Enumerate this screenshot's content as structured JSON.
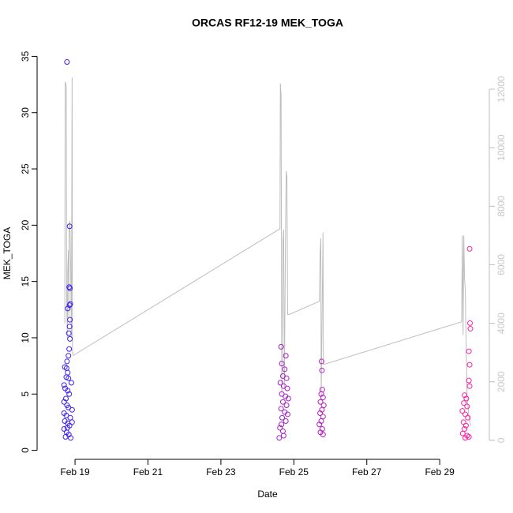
{
  "chart_data": {
    "type": "scatter",
    "title": "ORCAS RF12-19 MEK_TOGA",
    "x_label": "Date",
    "y_label": "MEK_TOGA",
    "xlim": [
      17.96,
      30.36
    ],
    "ylim": [
      -0.8,
      35.8
    ],
    "y2lim": [
      -650,
      13430
    ],
    "xticks": [
      {
        "value": 19,
        "label": "Feb 19"
      },
      {
        "value": 21,
        "label": "Feb 21"
      },
      {
        "value": 23,
        "label": "Feb 23"
      },
      {
        "value": 25,
        "label": "Feb 25"
      },
      {
        "value": 27,
        "label": "Feb 27"
      },
      {
        "value": 29,
        "label": "Feb 29"
      }
    ],
    "yticks": [
      0,
      5,
      10,
      15,
      20,
      25,
      30,
      35
    ],
    "y2ticks": [
      0,
      2000,
      4000,
      6000,
      8000,
      10000,
      12000
    ],
    "y2_color": "#c8c8c8",
    "series": [
      {
        "type": "line",
        "axis": "y2",
        "color": "#bdbdbd",
        "x": [
          18.72,
          18.73,
          18.76,
          18.77,
          18.79,
          18.8,
          18.82,
          18.83,
          18.84,
          18.86,
          18.88,
          18.9,
          18.92,
          18.93,
          18.95,
          24.62,
          24.63,
          24.65,
          24.67,
          24.7,
          24.72,
          24.74,
          24.77,
          24.79,
          24.81,
          24.83,
          24.87,
          25.7,
          25.72,
          25.74,
          25.75,
          25.8,
          25.81,
          25.84,
          29.6,
          29.62,
          29.64,
          29.66,
          29.68,
          29.7,
          29.72,
          29.75,
          29.8,
          29.85
        ],
        "values": [
          4000,
          12250,
          12100,
          5000,
          3500,
          5800,
          6500,
          4200,
          7200,
          7500,
          6000,
          3500,
          12400,
          3000,
          2900,
          7230,
          12200,
          11800,
          1600,
          6800,
          7200,
          1800,
          6800,
          9200,
          9000,
          4300,
          4300,
          4750,
          6400,
          6900,
          1500,
          7100,
          2600,
          2600,
          4050,
          7000,
          3600,
          7000,
          5500,
          5200,
          3600,
          1500,
          800,
          500
        ]
      },
      {
        "type": "scatter",
        "color_gradient": [
          "#3b22f0",
          "#ff1ea0"
        ],
        "x": [
          18.78,
          18.85,
          18.84,
          18.86,
          18.87,
          18.85,
          18.8,
          18.86,
          18.85,
          18.83,
          18.86,
          18.84,
          18.82,
          18.78,
          18.72,
          18.77,
          18.8,
          18.76,
          18.82,
          18.9,
          18.7,
          18.73,
          18.8,
          18.84,
          18.75,
          18.7,
          18.78,
          18.82,
          18.92,
          18.7,
          18.76,
          18.87,
          18.72,
          18.8,
          18.85,
          18.92,
          18.7,
          18.77,
          18.83,
          18.74,
          18.88,
          18.79,
          24.65,
          24.78,
          24.67,
          24.75,
          24.7,
          24.8,
          24.63,
          24.72,
          24.82,
          24.67,
          24.77,
          24.85,
          24.7,
          24.8,
          24.65,
          24.75,
          24.83,
          24.68,
          24.78,
          24.62,
          24.7,
          24.6,
          24.72,
          24.66,
          25.76,
          25.77,
          25.78,
          25.75,
          25.8,
          25.73,
          25.82,
          25.77,
          25.72,
          25.8,
          25.75,
          25.7,
          25.78,
          25.73,
          25.8,
          29.82,
          29.83,
          29.84,
          29.8,
          29.82,
          29.8,
          29.82,
          29.68,
          29.73,
          29.66,
          29.75,
          29.62,
          29.7,
          29.77,
          29.65,
          29.72,
          29.68,
          29.63,
          29.75,
          29.8,
          29.7
        ],
        "values": [
          34.5,
          19.9,
          14.5,
          14.4,
          13.0,
          12.9,
          12.6,
          11.6,
          11.0,
          10.4,
          9.9,
          9.0,
          8.4,
          7.9,
          7.4,
          7.3,
          6.9,
          6.5,
          6.4,
          6.0,
          5.8,
          5.5,
          5.3,
          5.0,
          4.6,
          4.3,
          4.0,
          3.8,
          3.6,
          3.3,
          3.1,
          2.9,
          2.6,
          2.4,
          2.2,
          2.5,
          1.9,
          1.6,
          1.4,
          1.2,
          1.1,
          2.0,
          9.2,
          8.4,
          7.7,
          7.2,
          6.6,
          6.4,
          6.0,
          5.7,
          5.5,
          5.0,
          4.8,
          4.6,
          4.3,
          4.0,
          3.7,
          3.4,
          3.2,
          2.9,
          2.6,
          2.0,
          1.7,
          1.1,
          1.3,
          2.3,
          7.9,
          7.1,
          5.4,
          5.0,
          4.7,
          4.3,
          4.0,
          3.6,
          3.3,
          3.0,
          2.6,
          2.3,
          1.9,
          1.6,
          1.4,
          17.9,
          11.3,
          10.8,
          8.8,
          7.6,
          6.2,
          5.7,
          4.9,
          4.6,
          4.2,
          3.9,
          3.5,
          3.2,
          2.9,
          2.5,
          2.2,
          1.9,
          1.5,
          1.3,
          1.2,
          1.1
        ]
      }
    ]
  }
}
